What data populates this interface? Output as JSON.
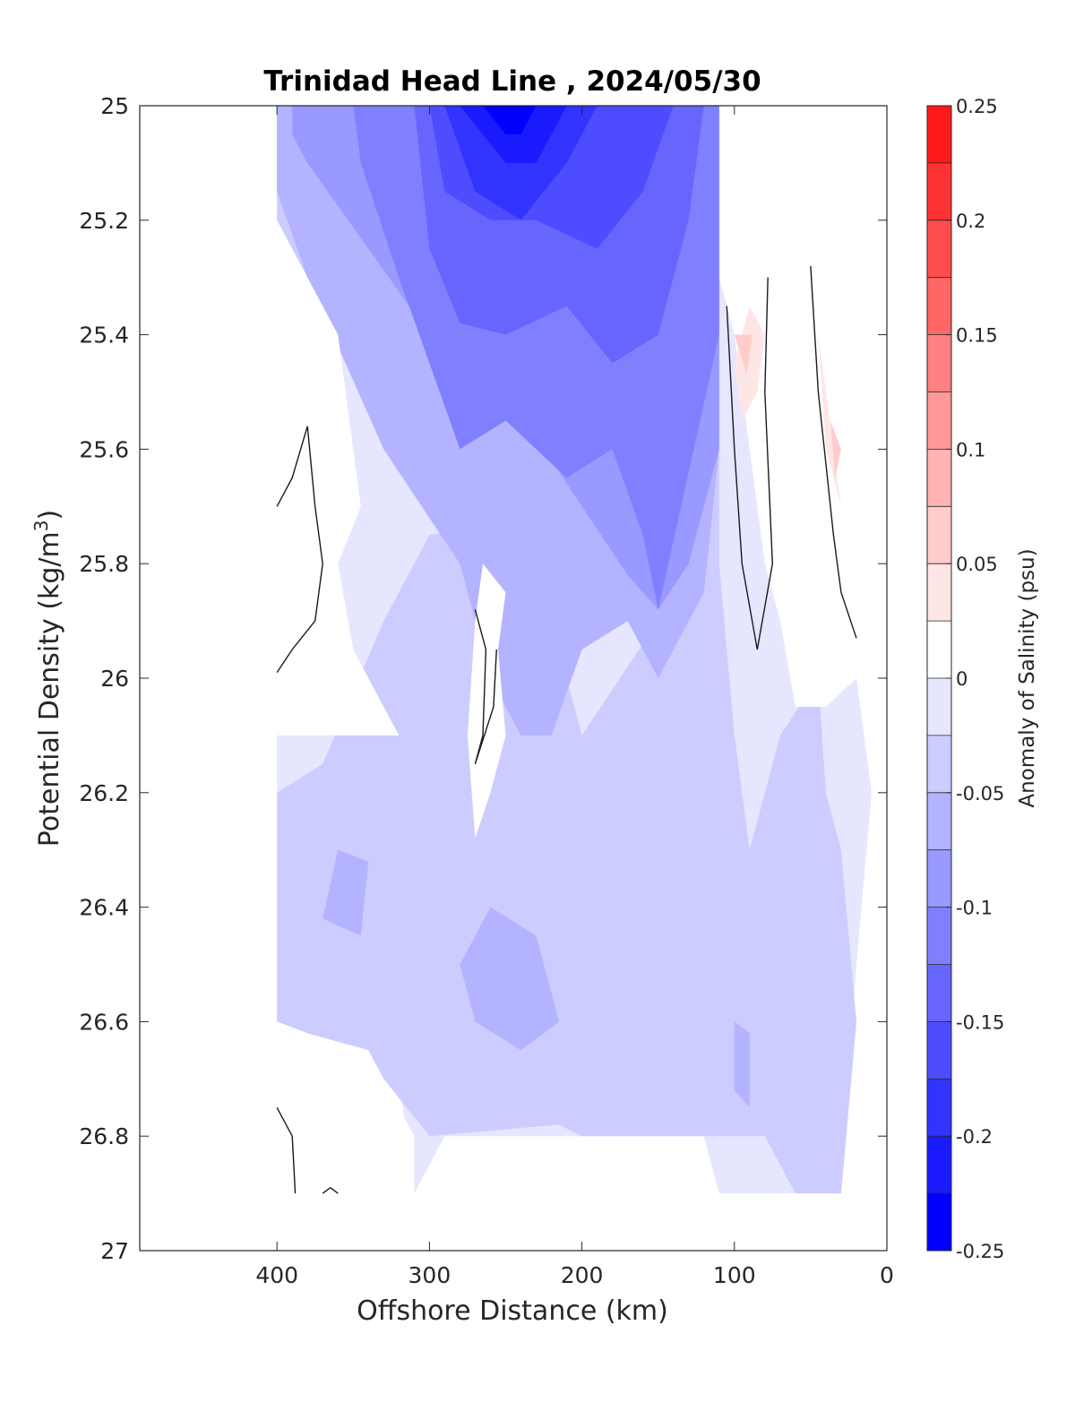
{
  "chart_data": {
    "type": "contourf",
    "title": "Trinidad Head Line , 2024/05/30",
    "xlabel": "Offshore Distance (km)",
    "ylabel": "Potential Density (kg/m",
    "ylabel_superscript": "3",
    "ylabel_close": ")",
    "x_reversed": true,
    "y_reversed": true,
    "xlim": [
      490,
      0
    ],
    "ylim": [
      25,
      27
    ],
    "xticks": [
      400,
      300,
      200,
      100,
      0
    ],
    "xtick_labels": [
      "400",
      "300",
      "200",
      "100",
      "0"
    ],
    "yticks": [
      25,
      25.2,
      25.4,
      25.6,
      25.8,
      26,
      26.2,
      26.4,
      26.6,
      26.8,
      27
    ],
    "ytick_labels": [
      "25",
      "25.2",
      "25.4",
      "25.6",
      "25.8",
      "26",
      "26.2",
      "26.4",
      "26.6",
      "26.8",
      "27"
    ],
    "colorbar": {
      "label": "Anomaly of Salinity (psu)",
      "range": [
        -0.25,
        0.25
      ],
      "levels": [
        -0.25,
        -0.225,
        -0.2,
        -0.175,
        -0.15,
        -0.125,
        -0.1,
        -0.075,
        -0.05,
        -0.025,
        0,
        0.025,
        0.05,
        0.075,
        0.1,
        0.125,
        0.15,
        0.175,
        0.2,
        0.225,
        0.25
      ],
      "ticks": [
        0.25,
        0.2,
        0.15,
        0.1,
        0.05,
        0,
        -0.05,
        -0.1,
        -0.15,
        -0.2,
        -0.25
      ],
      "tick_labels": [
        "0.25",
        "0.2",
        "0.15",
        "0.1",
        "0.05",
        "0",
        "-0.05",
        "-0.1",
        "-0.15",
        "-0.2",
        "-0.25"
      ],
      "colors_low_to_high": [
        "#0000ff",
        "#1a1aff",
        "#3333ff",
        "#4d4dff",
        "#6666ff",
        "#8080ff",
        "#9999ff",
        "#b3b3ff",
        "#ccccff",
        "#e6e6ff",
        "#ffffff",
        "#ffe6e6",
        "#ffcccc",
        "#ffb3b3",
        "#ff9999",
        "#ff8080",
        "#ff6666",
        "#ff4d4d",
        "#ff3333",
        "#ff1a1a"
      ]
    },
    "fill_layers": [
      {
        "value": -0.025,
        "color": "#e6e6ff",
        "polygon": [
          [
            400,
            25
          ],
          [
            110,
            25
          ],
          [
            110,
            25.3
          ],
          [
            20,
            25.3
          ],
          [
            20,
            26
          ],
          [
            10,
            26.2
          ],
          [
            20,
            26.5
          ],
          [
            30,
            26.9
          ],
          [
            110,
            26.9
          ],
          [
            120,
            26.8
          ],
          [
            290,
            26.8
          ],
          [
            310,
            26.9
          ],
          [
            320,
            26.7
          ],
          [
            360,
            26.6
          ],
          [
            400,
            26.6
          ]
        ]
      },
      {
        "value": -0.05,
        "color": "#ccccff",
        "polygon": [
          [
            400,
            25
          ],
          [
            110,
            25
          ],
          [
            110,
            25.8
          ],
          [
            100,
            26.1
          ],
          [
            90,
            26.3
          ],
          [
            70,
            26.1
          ],
          [
            45,
            26
          ],
          [
            40,
            26.2
          ],
          [
            30,
            26.3
          ],
          [
            20,
            26.6
          ],
          [
            30,
            26.9
          ],
          [
            60,
            26.9
          ],
          [
            80,
            26.8
          ],
          [
            200,
            26.8
          ],
          [
            215,
            26.78
          ],
          [
            300,
            26.8
          ],
          [
            330,
            26.7
          ],
          [
            380,
            26.62
          ],
          [
            400,
            26.6
          ],
          [
            400,
            26.2
          ],
          [
            370,
            26.15
          ],
          [
            330,
            25.9
          ],
          [
            300,
            25.75
          ],
          [
            240,
            25.72
          ],
          [
            220,
            25.9
          ],
          [
            200,
            26.1
          ],
          [
            150,
            25.9
          ],
          [
            130,
            25.9
          ],
          [
            120,
            25.7
          ],
          [
            210,
            25.7
          ],
          [
            280,
            25.6
          ],
          [
            330,
            25.5
          ],
          [
            380,
            25.3
          ],
          [
            400,
            25.2
          ]
        ]
      },
      {
        "value": -0.075,
        "color": "#b3b3ff",
        "polygon": [
          [
            400,
            25
          ],
          [
            110,
            25
          ],
          [
            110,
            25.6
          ],
          [
            120,
            25.85
          ],
          [
            150,
            26
          ],
          [
            170,
            25.9
          ],
          [
            200,
            25.95
          ],
          [
            220,
            26.1
          ],
          [
            240,
            26.1
          ],
          [
            260,
            26.0
          ],
          [
            270,
            25.9
          ],
          [
            280,
            25.8
          ],
          [
            330,
            25.6
          ],
          [
            380,
            25.3
          ],
          [
            400,
            25.15
          ]
        ]
      },
      {
        "value": -0.1,
        "color": "#9999ff",
        "polygon": [
          [
            390,
            25
          ],
          [
            110,
            25
          ],
          [
            110,
            25.6
          ],
          [
            130,
            25.8
          ],
          [
            150,
            25.88
          ],
          [
            170,
            25.82
          ],
          [
            200,
            25.7
          ],
          [
            220,
            25.62
          ],
          [
            250,
            25.55
          ],
          [
            280,
            25.6
          ],
          [
            300,
            25.4
          ],
          [
            340,
            25.25
          ],
          [
            380,
            25.1
          ],
          [
            390,
            25.05
          ]
        ]
      },
      {
        "value": -0.125,
        "color": "#8080ff",
        "polygon": [
          [
            350,
            25
          ],
          [
            110,
            25
          ],
          [
            110,
            25.4
          ],
          [
            150,
            25.88
          ],
          [
            160,
            25.75
          ],
          [
            180,
            25.6
          ],
          [
            210,
            25.65
          ],
          [
            250,
            25.55
          ],
          [
            280,
            25.6
          ],
          [
            300,
            25.45
          ],
          [
            320,
            25.3
          ],
          [
            345,
            25.1
          ]
        ]
      },
      {
        "value": -0.15,
        "color": "#6666ff",
        "polygon": [
          [
            310,
            25
          ],
          [
            120,
            25
          ],
          [
            130,
            25.2
          ],
          [
            150,
            25.4
          ],
          [
            180,
            25.45
          ],
          [
            210,
            25.35
          ],
          [
            250,
            25.4
          ],
          [
            280,
            25.38
          ],
          [
            300,
            25.25
          ]
        ]
      },
      {
        "value": -0.175,
        "color": "#4d4dff",
        "polygon": [
          [
            300,
            25
          ],
          [
            140,
            25
          ],
          [
            160,
            25.15
          ],
          [
            190,
            25.25
          ],
          [
            230,
            25.2
          ],
          [
            260,
            25.2
          ],
          [
            290,
            25.15
          ]
        ]
      },
      {
        "value": -0.2,
        "color": "#3333ff",
        "polygon": [
          [
            290,
            25
          ],
          [
            190,
            25
          ],
          [
            210,
            25.1
          ],
          [
            240,
            25.2
          ],
          [
            270,
            25.15
          ]
        ]
      },
      {
        "value": -0.225,
        "color": "#1a1aff",
        "polygon": [
          [
            280,
            25
          ],
          [
            210,
            25
          ],
          [
            230,
            25.1
          ],
          [
            250,
            25.1
          ]
        ]
      },
      {
        "value": -0.25,
        "color": "#0000ff",
        "polygon": [
          [
            265,
            25
          ],
          [
            230,
            25
          ],
          [
            240,
            25.05
          ],
          [
            250,
            25.05
          ]
        ]
      },
      {
        "value": 0,
        "color": "#ffffff",
        "polygon": [
          [
            400,
            25.2
          ],
          [
            380,
            25.3
          ],
          [
            360,
            25.4
          ],
          [
            345,
            25.7
          ],
          [
            360,
            25.8
          ],
          [
            350,
            25.95
          ],
          [
            330,
            26.05
          ],
          [
            320,
            26.1
          ],
          [
            400,
            26.1
          ]
        ]
      },
      {
        "value": 0,
        "color": "#ffffff",
        "polygon": [
          [
            265,
            25.8
          ],
          [
            250,
            25.85
          ],
          [
            255,
            25.95
          ],
          [
            250,
            26.1
          ],
          [
            260,
            26.2
          ],
          [
            270,
            26.28
          ],
          [
            275,
            26.1
          ],
          [
            270,
            25.9
          ]
        ]
      },
      {
        "value": 0,
        "color": "#ffffff",
        "polygon": [
          [
            400,
            26.6
          ],
          [
            380,
            26.62
          ],
          [
            340,
            26.65
          ],
          [
            320,
            26.75
          ],
          [
            310,
            26.8
          ],
          [
            310,
            26.9
          ],
          [
            400,
            26.9
          ]
        ]
      },
      {
        "value": 0,
        "color": "#ffffff",
        "polygon": [
          [
            110,
            25.3
          ],
          [
            100,
            25.4
          ],
          [
            90,
            25.6
          ],
          [
            80,
            25.8
          ],
          [
            70,
            25.9
          ],
          [
            60,
            26.05
          ],
          [
            40,
            26.05
          ],
          [
            20,
            26.0
          ],
          [
            20,
            25.3
          ]
        ]
      },
      {
        "value": 0.025,
        "color": "#ffe6e6",
        "polygon": [
          [
            100,
            25.45
          ],
          [
            90,
            25.35
          ],
          [
            80,
            25.4
          ],
          [
            85,
            25.5
          ],
          [
            95,
            25.55
          ]
        ]
      },
      {
        "value": 0.025,
        "color": "#ffe6e6",
        "polygon": [
          [
            45,
            25.4
          ],
          [
            35,
            25.6
          ],
          [
            30,
            25.7
          ],
          [
            40,
            25.6
          ]
        ]
      },
      {
        "value": 0.05,
        "color": "#ffcccc",
        "polygon": [
          [
            100,
            25.4
          ],
          [
            88,
            25.4
          ],
          [
            92,
            25.47
          ]
        ]
      },
      {
        "value": 0.05,
        "color": "#ffcccc",
        "polygon": [
          [
            37,
            25.55
          ],
          [
            30,
            25.6
          ],
          [
            34,
            25.65
          ]
        ]
      },
      {
        "value": -0.075,
        "color": "#b3b3ff",
        "polygon": [
          [
            260,
            26.4
          ],
          [
            230,
            26.45
          ],
          [
            215,
            26.6
          ],
          [
            240,
            26.65
          ],
          [
            270,
            26.6
          ],
          [
            280,
            26.5
          ]
        ]
      },
      {
        "value": -0.075,
        "color": "#b3b3ff",
        "polygon": [
          [
            360,
            26.3
          ],
          [
            340,
            26.32
          ],
          [
            345,
            26.45
          ],
          [
            370,
            26.42
          ]
        ]
      },
      {
        "value": -0.075,
        "color": "#b3b3ff",
        "polygon": [
          [
            100,
            26.6
          ],
          [
            90,
            26.62
          ],
          [
            90,
            26.75
          ],
          [
            100,
            26.72
          ]
        ]
      }
    ],
    "zero_contour_lines": [
      [
        [
          400,
          25.7
        ],
        [
          390,
          25.65
        ],
        [
          380,
          25.56
        ],
        [
          375,
          25.7
        ],
        [
          370,
          25.8
        ],
        [
          375,
          25.9
        ],
        [
          390,
          25.95
        ],
        [
          400,
          25.99
        ]
      ],
      [
        [
          270,
          25.88
        ],
        [
          263,
          25.95
        ],
        [
          265,
          26.1
        ],
        [
          270,
          26.15
        ],
        [
          258,
          26.05
        ],
        [
          256,
          25.95
        ]
      ],
      [
        [
          105,
          25.35
        ],
        [
          100,
          25.6
        ],
        [
          95,
          25.8
        ],
        [
          85,
          25.95
        ],
        [
          75,
          25.8
        ],
        [
          80,
          25.5
        ],
        [
          78,
          25.3
        ]
      ],
      [
        [
          50,
          25.28
        ],
        [
          45,
          25.5
        ],
        [
          35,
          25.75
        ],
        [
          30,
          25.85
        ],
        [
          20,
          25.93
        ]
      ],
      [
        [
          400,
          26.75
        ],
        [
          390,
          26.8
        ],
        [
          388,
          26.9
        ]
      ],
      [
        [
          370,
          26.9
        ],
        [
          365,
          26.89
        ],
        [
          360,
          26.9
        ]
      ]
    ]
  }
}
